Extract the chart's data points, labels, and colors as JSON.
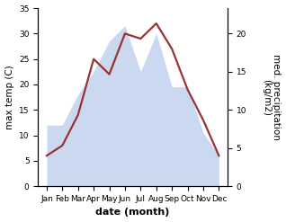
{
  "months": [
    "Jan",
    "Feb",
    "Mar",
    "Apr",
    "May",
    "Jun",
    "Jul",
    "Aug",
    "Sep",
    "Oct",
    "Nov",
    "Dec"
  ],
  "max_temp": [
    6,
    8,
    14,
    25,
    22,
    30,
    29,
    32,
    27,
    19,
    13,
    6
  ],
  "precipitation": [
    8,
    8,
    12,
    15,
    19,
    21,
    15,
    20,
    13,
    13,
    7,
    4
  ],
  "temp_ylim": [
    0,
    35
  ],
  "precip_ylim": [
    0,
    23.3
  ],
  "temp_yticks": [
    0,
    5,
    10,
    15,
    20,
    25,
    30,
    35
  ],
  "precip_yticks": [
    0,
    5,
    10,
    15,
    20
  ],
  "fill_color": "#aec6e8",
  "fill_alpha": 0.65,
  "line_color": "#993333",
  "line_width": 1.6,
  "xlabel": "date (month)",
  "ylabel_left": "max temp (C)",
  "ylabel_right": "med. precipitation\n(kg/m2)",
  "bg_color": "#ffffff",
  "label_fontsize": 7.5,
  "tick_fontsize": 6.5,
  "xlabel_fontsize": 8,
  "xlabel_fontweight": "bold"
}
